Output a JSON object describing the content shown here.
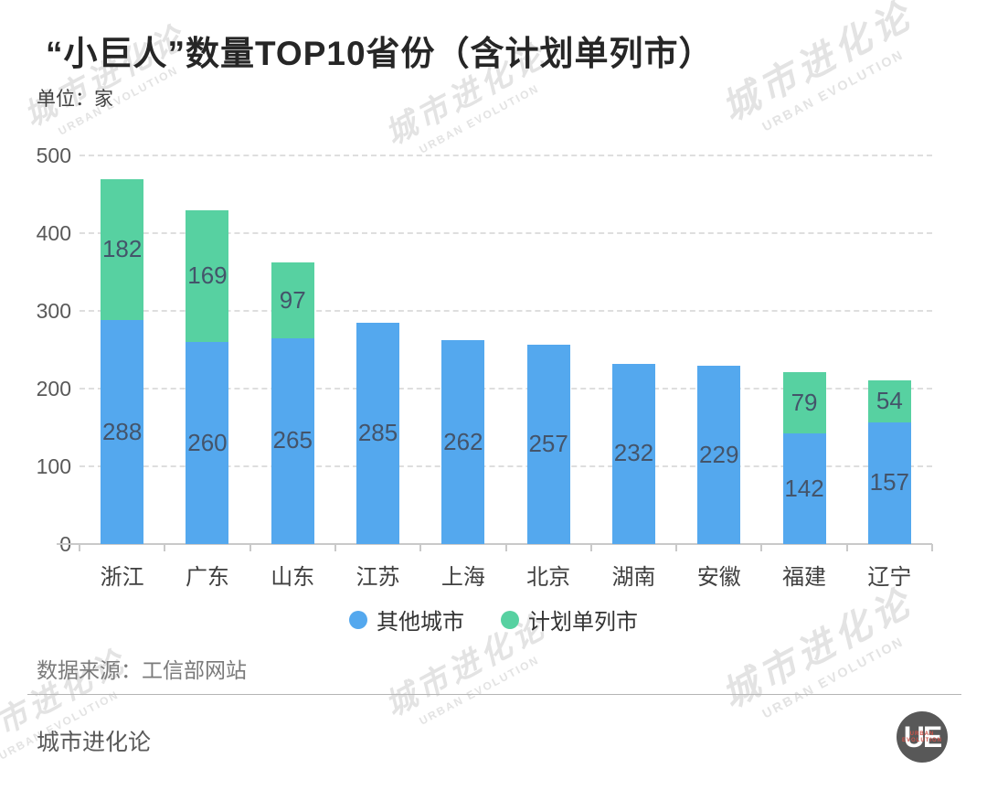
{
  "header": {
    "title": "“小巨人”数量TOP10省份（含计划单列市）",
    "unit": "单位：家"
  },
  "chart_data": {
    "type": "bar",
    "stacked": true,
    "categories": [
      "浙江",
      "广东",
      "山东",
      "江苏",
      "上海",
      "北京",
      "湖南",
      "安徽",
      "福建",
      "辽宁"
    ],
    "series": [
      {
        "name": "其他城市",
        "color": "#54a8ee",
        "values": [
          288,
          260,
          265,
          285,
          262,
          257,
          232,
          229,
          142,
          157
        ]
      },
      {
        "name": "计划单列市",
        "color": "#57d1a1",
        "values": [
          182,
          169,
          97,
          0,
          0,
          0,
          0,
          0,
          79,
          54
        ]
      }
    ],
    "totals": [
      470,
      429,
      362,
      285,
      262,
      257,
      232,
      229,
      221,
      211
    ],
    "title": "“小巨人”数量TOP10省份（含计划单列市）",
    "xlabel": "",
    "ylabel": "单位：家",
    "ylim": [
      0,
      500
    ],
    "yticks": [
      0,
      100,
      200,
      300,
      400,
      500
    ],
    "grid": "horizontal-dashed",
    "legend_position": "bottom",
    "value_label_color": "#44546a"
  },
  "legend": {
    "items": [
      {
        "label": "其他城市",
        "color": "#54a8ee"
      },
      {
        "label": "计划单列市",
        "color": "#57d1a1"
      }
    ]
  },
  "footer": {
    "source": "数据来源：工信部网站",
    "brand": "城市进化论"
  },
  "logo": {
    "text": "UE",
    "caption_line1": "URBAN",
    "caption_line2": "EVOLUTION"
  },
  "watermark": {
    "line1": "城市进化论",
    "line2": "URBAN EVOLUTION"
  }
}
